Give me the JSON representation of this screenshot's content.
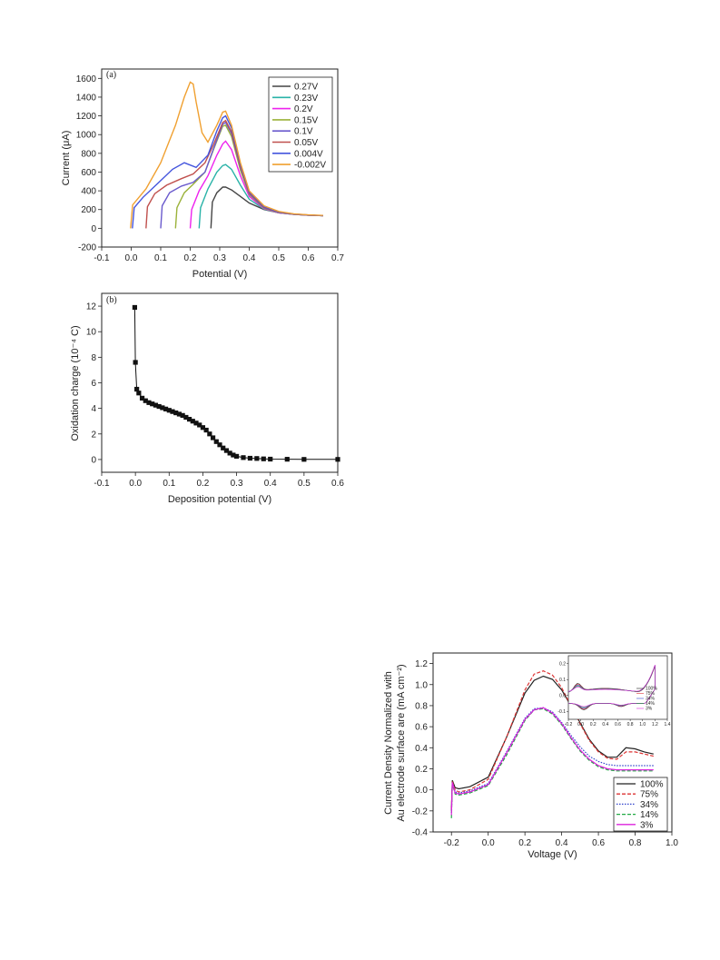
{
  "chart_data": [
    {
      "type": "line",
      "panel_label": "(a)",
      "xlabel": "Potential (V)",
      "ylabel": "Current (μA)",
      "xlim": [
        -0.1,
        0.7
      ],
      "ylim": [
        -200,
        1700
      ],
      "xticks": [
        "-0.1",
        "0.0",
        "0.1",
        "0.2",
        "0.3",
        "0.4",
        "0.5",
        "0.6",
        "0.7"
      ],
      "yticks": [
        "-200",
        "0",
        "200",
        "400",
        "600",
        "800",
        "1000",
        "1200",
        "1400",
        "1600"
      ],
      "legend_position": "top-right",
      "series": [
        {
          "name": "0.27V",
          "color": "#444444",
          "dash": "",
          "x": [
            0.27,
            0.275,
            0.29,
            0.31,
            0.32,
            0.34,
            0.37,
            0.4,
            0.45,
            0.5,
            0.55,
            0.6,
            0.65
          ],
          "y": [
            0,
            280,
            380,
            440,
            440,
            410,
            340,
            270,
            200,
            165,
            150,
            140,
            135
          ]
        },
        {
          "name": "0.23V",
          "color": "#2ab3a8",
          "dash": "",
          "x": [
            0.23,
            0.235,
            0.26,
            0.29,
            0.31,
            0.32,
            0.34,
            0.37,
            0.4,
            0.45,
            0.5,
            0.55,
            0.6,
            0.65
          ],
          "y": [
            0,
            220,
            420,
            600,
            670,
            680,
            630,
            460,
            310,
            205,
            165,
            150,
            140,
            135
          ]
        },
        {
          "name": "0.2V",
          "color": "#ee22ee",
          "dash": "",
          "x": [
            0.2,
            0.205,
            0.23,
            0.26,
            0.29,
            0.31,
            0.32,
            0.34,
            0.37,
            0.4,
            0.45,
            0.5,
            0.55,
            0.6,
            0.65
          ],
          "y": [
            0,
            200,
            400,
            560,
            780,
            900,
            930,
            840,
            560,
            340,
            210,
            165,
            150,
            140,
            135
          ]
        },
        {
          "name": "0.15V",
          "color": "#9bb23a",
          "dash": "",
          "x": [
            0.15,
            0.155,
            0.18,
            0.21,
            0.25,
            0.28,
            0.31,
            0.32,
            0.34,
            0.37,
            0.4,
            0.45,
            0.5,
            0.55,
            0.6,
            0.65
          ],
          "y": [
            0,
            220,
            380,
            470,
            600,
            850,
            1090,
            1100,
            980,
            620,
            360,
            215,
            168,
            150,
            140,
            135
          ]
        },
        {
          "name": "0.1V",
          "color": "#6a5acd",
          "dash": "",
          "x": [
            0.1,
            0.105,
            0.13,
            0.17,
            0.21,
            0.25,
            0.28,
            0.31,
            0.32,
            0.34,
            0.37,
            0.4,
            0.45,
            0.5,
            0.55,
            0.6,
            0.65
          ],
          "y": [
            0,
            240,
            380,
            450,
            490,
            600,
            860,
            1110,
            1130,
            1010,
            650,
            370,
            220,
            170,
            150,
            140,
            135
          ]
        },
        {
          "name": "0.05V",
          "color": "#c0504d",
          "dash": "",
          "x": [
            0.05,
            0.055,
            0.08,
            0.12,
            0.17,
            0.21,
            0.25,
            0.28,
            0.31,
            0.32,
            0.34,
            0.37,
            0.4,
            0.45,
            0.5,
            0.55,
            0.6,
            0.65
          ],
          "y": [
            0,
            230,
            370,
            460,
            530,
            580,
            700,
            900,
            1130,
            1150,
            1030,
            660,
            380,
            225,
            172,
            152,
            141,
            135
          ]
        },
        {
          "name": "0.004V",
          "color": "#4455dd",
          "dash": "",
          "x": [
            0.004,
            0.01,
            0.04,
            0.09,
            0.14,
            0.18,
            0.22,
            0.26,
            0.29,
            0.31,
            0.32,
            0.34,
            0.37,
            0.4,
            0.45,
            0.5,
            0.55,
            0.6,
            0.65
          ],
          "y": [
            0,
            220,
            330,
            480,
            630,
            700,
            650,
            780,
            1040,
            1180,
            1200,
            1070,
            680,
            390,
            230,
            175,
            153,
            142,
            135
          ]
        },
        {
          "name": "-0.002V",
          "color": "#f0a030",
          "dash": "",
          "x": [
            -0.002,
            0.005,
            0.05,
            0.1,
            0.15,
            0.18,
            0.2,
            0.21,
            0.22,
            0.24,
            0.26,
            0.29,
            0.31,
            0.32,
            0.34,
            0.37,
            0.4,
            0.45,
            0.5,
            0.55,
            0.6,
            0.65
          ],
          "y": [
            0,
            250,
            420,
            700,
            1100,
            1400,
            1560,
            1540,
            1350,
            1020,
            920,
            1100,
            1240,
            1250,
            1100,
            700,
            400,
            240,
            180,
            155,
            143,
            137
          ]
        }
      ]
    },
    {
      "type": "scatter",
      "panel_label": "(b)",
      "xlabel": "Deposition potential (V)",
      "ylabel": "Oxidation charge (10⁻⁴ C)",
      "xlim": [
        -0.1,
        0.6
      ],
      "ylim": [
        -1,
        13
      ],
      "xticks": [
        "-0.1",
        "0.0",
        "0.1",
        "0.2",
        "0.3",
        "0.4",
        "0.5",
        "0.6"
      ],
      "yticks": [
        "0",
        "2",
        "4",
        "6",
        "8",
        "10",
        "12"
      ],
      "series": [
        {
          "name": "",
          "color": "#111111",
          "x": [
            -0.002,
            0.0,
            0.004,
            0.01,
            0.02,
            0.03,
            0.04,
            0.05,
            0.06,
            0.07,
            0.08,
            0.09,
            0.1,
            0.11,
            0.12,
            0.13,
            0.14,
            0.15,
            0.16,
            0.17,
            0.18,
            0.19,
            0.2,
            0.21,
            0.22,
            0.23,
            0.24,
            0.25,
            0.26,
            0.27,
            0.28,
            0.29,
            0.3,
            0.32,
            0.34,
            0.36,
            0.38,
            0.4,
            0.45,
            0.5,
            0.6
          ],
          "y": [
            11.9,
            7.6,
            5.5,
            5.2,
            4.8,
            4.6,
            4.45,
            4.35,
            4.25,
            4.15,
            4.05,
            3.95,
            3.85,
            3.75,
            3.65,
            3.55,
            3.45,
            3.3,
            3.15,
            3.0,
            2.85,
            2.7,
            2.5,
            2.3,
            2.0,
            1.7,
            1.4,
            1.15,
            0.9,
            0.7,
            0.5,
            0.35,
            0.25,
            0.15,
            0.1,
            0.08,
            0.05,
            0.03,
            0.02,
            0.01,
            0.01
          ]
        }
      ]
    },
    {
      "type": "line",
      "xlabel": "Voltage (V)",
      "ylabel_line1": "Current Density Normalized with",
      "ylabel_line2": "Au electrode surface are (mA cm⁻²)",
      "xlim": [
        -0.3,
        1.0
      ],
      "ylim": [
        -0.4,
        1.3
      ],
      "xticks": [
        "-0.2",
        "0.0",
        "0.2",
        "0.4",
        "0.6",
        "0.8",
        "1.0"
      ],
      "yticks": [
        "-0.4",
        "-0.2",
        "0.0",
        "0.2",
        "0.4",
        "0.6",
        "0.8",
        "1.0",
        "1.2"
      ],
      "legend_position": "bottom-right",
      "series": [
        {
          "name": "100%",
          "color": "#222222",
          "dash": "",
          "x": [
            -0.2,
            -0.195,
            -0.18,
            -0.16,
            -0.1,
            0.0,
            0.1,
            0.2,
            0.25,
            0.3,
            0.35,
            0.4,
            0.45,
            0.5,
            0.55,
            0.6,
            0.65,
            0.7,
            0.75,
            0.8,
            0.85,
            0.9
          ],
          "y": [
            -0.2,
            0.09,
            0.02,
            0.01,
            0.03,
            0.12,
            0.5,
            0.92,
            1.04,
            1.08,
            1.05,
            0.95,
            0.8,
            0.64,
            0.48,
            0.37,
            0.31,
            0.31,
            0.4,
            0.39,
            0.36,
            0.34
          ]
        },
        {
          "name": "75%",
          "color": "#dd3333",
          "dash": "4,2",
          "x": [
            -0.2,
            -0.195,
            -0.18,
            -0.16,
            -0.1,
            0.0,
            0.1,
            0.2,
            0.25,
            0.3,
            0.35,
            0.4,
            0.45,
            0.5,
            0.55,
            0.6,
            0.65,
            0.7,
            0.75,
            0.8,
            0.85,
            0.9
          ],
          "y": [
            -0.18,
            0.08,
            0.0,
            -0.02,
            0.0,
            0.1,
            0.5,
            0.95,
            1.1,
            1.13,
            1.09,
            0.97,
            0.8,
            0.63,
            0.47,
            0.36,
            0.3,
            0.29,
            0.36,
            0.36,
            0.34,
            0.32
          ]
        },
        {
          "name": "34%",
          "color": "#3344cc",
          "dash": "1.5,1.5",
          "x": [
            -0.2,
            -0.195,
            -0.18,
            -0.16,
            -0.1,
            0.0,
            0.1,
            0.2,
            0.25,
            0.3,
            0.35,
            0.4,
            0.45,
            0.5,
            0.55,
            0.6,
            0.65,
            0.7,
            0.75,
            0.8,
            0.85,
            0.9
          ],
          "y": [
            -0.22,
            0.07,
            -0.02,
            -0.03,
            -0.01,
            0.06,
            0.36,
            0.68,
            0.77,
            0.78,
            0.74,
            0.64,
            0.52,
            0.41,
            0.32,
            0.27,
            0.24,
            0.23,
            0.23,
            0.23,
            0.23,
            0.23
          ]
        },
        {
          "name": "14%",
          "color": "#22aa44",
          "dash": "4,2",
          "x": [
            -0.2,
            -0.195,
            -0.18,
            -0.16,
            -0.1,
            0.0,
            0.1,
            0.2,
            0.25,
            0.3,
            0.35,
            0.4,
            0.45,
            0.5,
            0.55,
            0.6,
            0.65,
            0.7,
            0.75,
            0.8,
            0.85,
            0.9
          ],
          "y": [
            -0.27,
            0.06,
            -0.04,
            -0.05,
            -0.03,
            0.04,
            0.33,
            0.66,
            0.76,
            0.77,
            0.72,
            0.62,
            0.49,
            0.37,
            0.28,
            0.22,
            0.19,
            0.18,
            0.18,
            0.18,
            0.18,
            0.18
          ]
        },
        {
          "name": "3%",
          "color": "#dd22dd",
          "dash": "",
          "x": [
            -0.2,
            -0.195,
            -0.18,
            -0.16,
            -0.1,
            0.0,
            0.1,
            0.2,
            0.25,
            0.3,
            0.35,
            0.4,
            0.45,
            0.5,
            0.55,
            0.6,
            0.65,
            0.7,
            0.75,
            0.8,
            0.85,
            0.9
          ],
          "y": [
            -0.24,
            0.07,
            -0.03,
            -0.04,
            -0.02,
            0.05,
            0.35,
            0.67,
            0.76,
            0.78,
            0.73,
            0.63,
            0.5,
            0.38,
            0.29,
            0.23,
            0.2,
            0.19,
            0.19,
            0.19,
            0.19,
            0.19
          ]
        }
      ],
      "inset": {
        "xticks": [
          "-0.2",
          "0.0",
          "0.2",
          "0.4",
          "0.6",
          "0.8",
          "1.0",
          "1.2",
          "1.4"
        ],
        "yticks": [
          "-0.1",
          "0.0",
          "0.1",
          "0.2"
        ],
        "xlim": [
          -0.2,
          1.4
        ],
        "ylim": [
          -0.15,
          0.25
        ],
        "legend": [
          "100%",
          "75%",
          "34%",
          "14%",
          "3%"
        ],
        "colors": [
          "#222222",
          "#dd3333",
          "#3344cc",
          "#22aa44",
          "#dd22dd"
        ]
      }
    }
  ]
}
